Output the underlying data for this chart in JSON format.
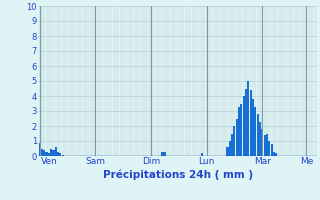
{
  "title": "",
  "xlabel": "Précipitations 24h ( mm )",
  "ylabel": "",
  "ylim": [
    0,
    10
  ],
  "yticks": [
    0,
    1,
    2,
    3,
    4,
    5,
    6,
    7,
    8,
    9,
    10
  ],
  "background_color": "#dff4f4",
  "bar_color": "#1a6fd4",
  "grid_color": "#b8d0d0",
  "day_line_color": "#7799aa",
  "xlabel_color": "#2244cc",
  "tick_color": "#2244cc",
  "values": [
    0.9,
    0.5,
    0.4,
    0.3,
    0.2,
    0.5,
    0.4,
    0.6,
    0.3,
    0.2,
    0.1,
    0.0,
    0.0,
    0.0,
    0.0,
    0.0,
    0.0,
    0.0,
    0.0,
    0.0,
    0.0,
    0.0,
    0.0,
    0.0,
    0.0,
    0.0,
    0.0,
    0.0,
    0.0,
    0.0,
    0.0,
    0.0,
    0.0,
    0.0,
    0.0,
    0.0,
    0.0,
    0.0,
    0.0,
    0.0,
    0.0,
    0.0,
    0.0,
    0.0,
    0.0,
    0.0,
    0.0,
    0.0,
    0.0,
    0.0,
    0.0,
    0.0,
    0.0,
    0.3,
    0.3,
    0.0,
    0.0,
    0.0,
    0.0,
    0.0,
    0.0,
    0.0,
    0.0,
    0.0,
    0.0,
    0.0,
    0.0,
    0.0,
    0.0,
    0.0,
    0.2,
    0.0,
    0.0,
    0.0,
    0.0,
    0.0,
    0.0,
    0.0,
    0.0,
    0.0,
    0.0,
    0.6,
    1.0,
    1.5,
    2.0,
    2.5,
    3.3,
    3.5,
    4.0,
    4.5,
    5.0,
    4.4,
    3.8,
    3.3,
    2.8,
    2.3,
    1.8,
    1.4,
    1.5,
    1.0,
    0.8,
    0.3,
    0.2,
    0.0,
    0.0,
    0.0,
    0.0,
    0.0,
    0.0,
    0.0,
    0.0,
    0.0,
    0.0,
    0.0,
    0.0,
    0.0,
    0.0,
    0.0,
    0.0,
    0.0
  ],
  "day_labels": [
    "Ven",
    "Sam",
    "Dim",
    "Lun",
    "Mar",
    "Me"
  ],
  "day_positions": [
    4,
    24,
    48,
    72,
    96,
    115
  ],
  "day_line_positions": [
    0,
    24,
    48,
    72,
    96,
    115
  ]
}
